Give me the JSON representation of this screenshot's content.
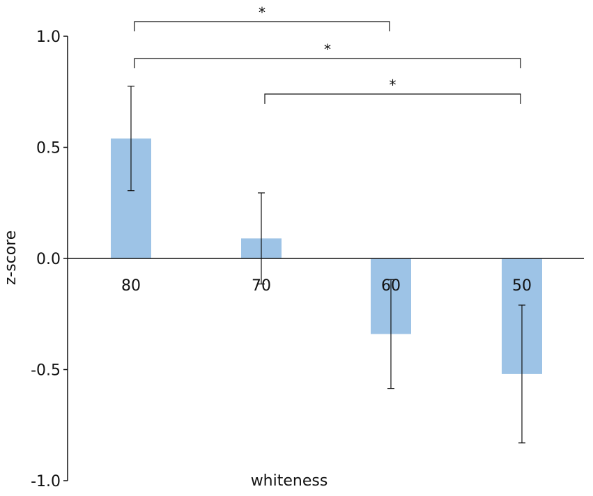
{
  "chart_data": {
    "type": "bar",
    "categories": [
      "80",
      "70",
      "60",
      "50"
    ],
    "values": [
      0.54,
      0.09,
      -0.34,
      -0.52
    ],
    "error": [
      0.235,
      0.205,
      0.245,
      0.31
    ],
    "ylabel": "z-score",
    "xlabel": "whiteness",
    "ylim": [
      -1.0,
      1.0
    ],
    "yticks": [
      "1.0",
      "0.5",
      "0.0",
      "-0.5",
      "-1.0"
    ],
    "grid": false,
    "bar_color": "#9dc3e6",
    "significance": [
      {
        "from": 0,
        "to": 2,
        "label": "*"
      },
      {
        "from": 0,
        "to": 3,
        "label": "*"
      },
      {
        "from": 1,
        "to": 3,
        "label": "*"
      }
    ]
  }
}
